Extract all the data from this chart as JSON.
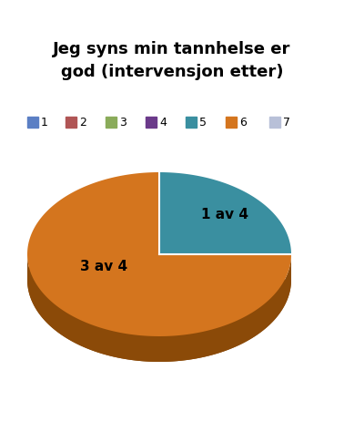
{
  "title_line1": "Jeg syns min tannhelse er",
  "title_line2": "god (intervensjon etter)",
  "title_fontsize": 13,
  "slices": [
    1,
    3
  ],
  "slice_labels": [
    "1 av 4",
    "3 av 4"
  ],
  "slice_colors": [
    "#3a8fa0",
    "#d4751e"
  ],
  "slice_shadow_colors": [
    "#1e5f6e",
    "#8b4a08"
  ],
  "legend_labels": [
    "1",
    "2",
    "3",
    "4",
    "5",
    "6",
    "7"
  ],
  "legend_colors": [
    "#5b7fc4",
    "#b05555",
    "#8aab5a",
    "#6b3a8a",
    "#3a8fa0",
    "#d4751e",
    "#b8c0d8"
  ],
  "label_fontsize": 11,
  "background_color": "#ffffff"
}
